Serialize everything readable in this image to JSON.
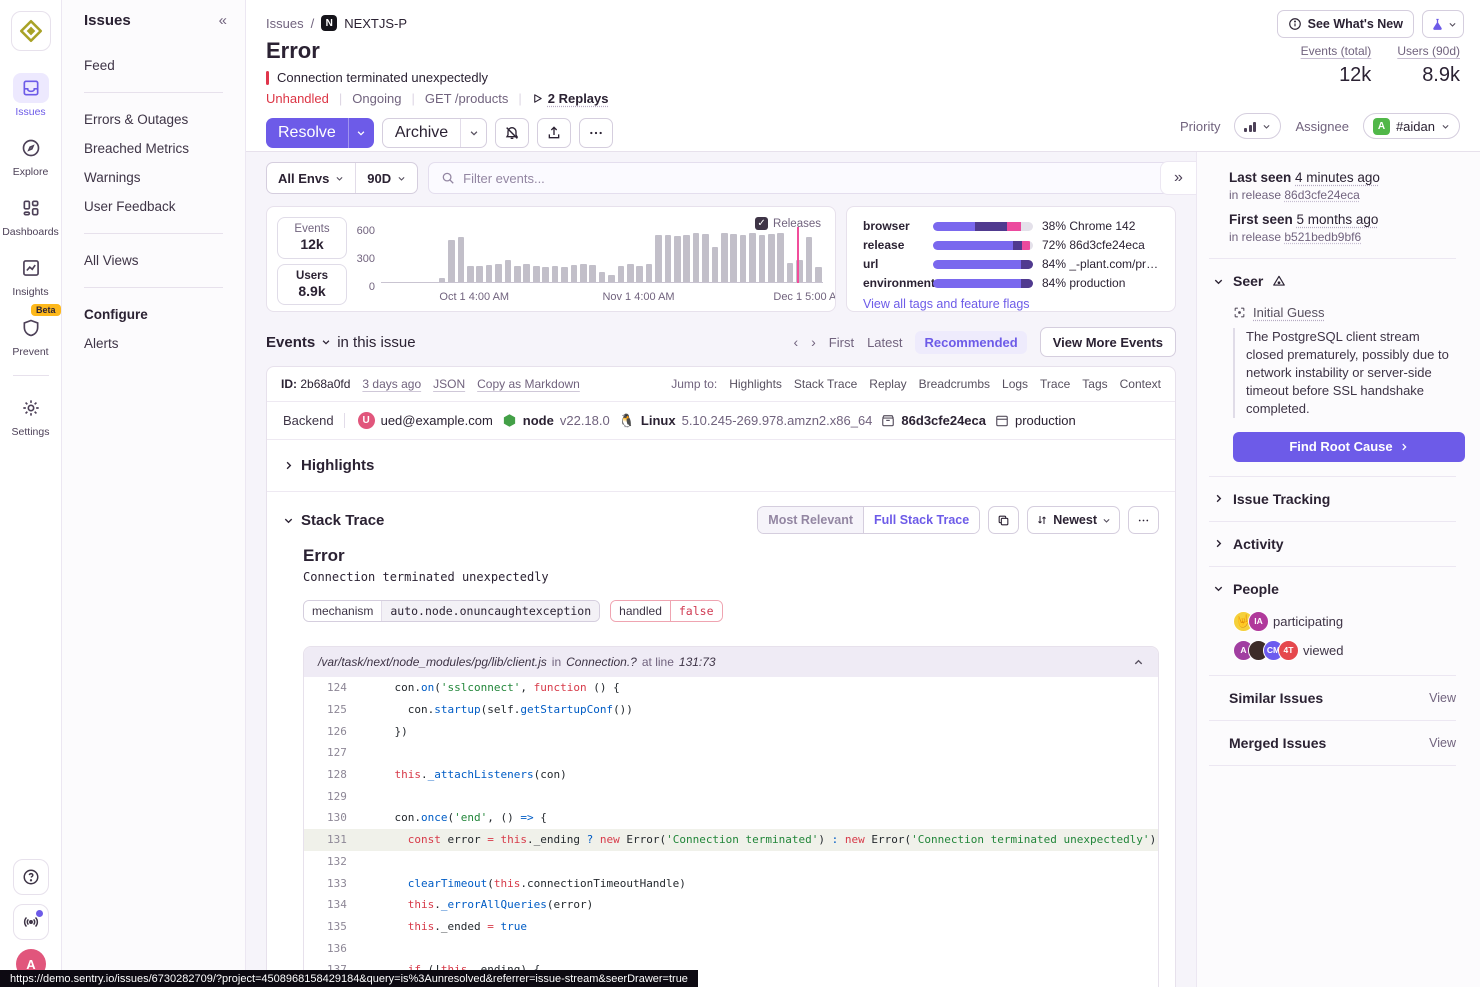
{
  "rail": {
    "items": [
      {
        "label": "Issues"
      },
      {
        "label": "Explore"
      },
      {
        "label": "Dashboards"
      },
      {
        "label": "Insights"
      },
      {
        "label": "Prevent",
        "badge": "Beta"
      },
      {
        "label": "Settings"
      }
    ],
    "avatar_letter": "A"
  },
  "sidebar": {
    "title": "Issues",
    "items": [
      "Feed",
      "Errors & Outages",
      "Breached Metrics",
      "Warnings",
      "User Feedback",
      "All Views",
      "Alerts"
    ],
    "configure_label": "Configure"
  },
  "header": {
    "breadcrumb_root": "Issues",
    "project_letter": "N",
    "project": "NEXTJS-P",
    "whats_new": "See What's New",
    "title": "Error",
    "message": "Connection terminated unexpectedly",
    "unhandled": "Unhandled",
    "status": "Ongoing",
    "transaction": "GET /products",
    "replays": "2 Replays",
    "stats": [
      {
        "label": "Events (total)",
        "value": "12k"
      },
      {
        "label": "Users (90d)",
        "value": "8.9k"
      }
    ],
    "resolve": "Resolve",
    "archive": "Archive",
    "priority_label": "Priority",
    "assignee_label": "Assignee",
    "assignee": "#aidan",
    "assignee_initial": "A"
  },
  "filters": {
    "env": "All Envs",
    "range": "90D",
    "search_placeholder": "Filter events..."
  },
  "chart_summary": {
    "events_label": "Events",
    "events_value": "12k",
    "users_label": "Users",
    "users_value": "8.9k",
    "releases_label": "Releases"
  },
  "chart_data": {
    "type": "bar",
    "ylabel": "events",
    "ylim": [
      0,
      600
    ],
    "yticks": [
      "600",
      "300",
      "0"
    ],
    "xticks": [
      {
        "label": "Oct 1 4:00 AM",
        "pos": 0.21
      },
      {
        "label": "Nov 1 4:00 AM",
        "pos": 0.58
      },
      {
        "label": "Dec 1 5:00 AM",
        "pos": 0.965
      }
    ],
    "values": [
      0,
      0,
      0,
      0,
      0,
      0,
      45,
      450,
      485,
      175,
      170,
      180,
      190,
      240,
      175,
      190,
      170,
      165,
      170,
      165,
      185,
      190,
      185,
      110,
      80,
      170,
      190,
      175,
      190,
      500,
      500,
      495,
      505,
      520,
      515,
      370,
      520,
      510,
      500,
      530,
      500,
      510,
      520,
      200,
      240,
      480,
      160
    ],
    "release_line_index": 44,
    "bar_color": "#c2bfc9",
    "release_line_color": "#f14d9b",
    "legend": "Releases checkbox checked"
  },
  "tags_panel": {
    "rows": [
      {
        "label": "browser",
        "pct": "38%",
        "value": "Chrome 142",
        "segments": [
          [
            42,
            "#7a68ee"
          ],
          [
            32,
            "#503a8f"
          ],
          [
            14,
            "#ec4a9e"
          ],
          [
            12,
            "#e4e1ea"
          ]
        ]
      },
      {
        "label": "release",
        "pct": "72%",
        "value": "86d3cfe24eca",
        "segments": [
          [
            80,
            "#7a68ee"
          ],
          [
            9,
            "#503a8f"
          ],
          [
            8,
            "#ec4a9e"
          ],
          [
            3,
            "#e4e1ea"
          ]
        ]
      },
      {
        "label": "url",
        "pct": "84%",
        "value": "_-plant.com/products",
        "segments": [
          [
            88,
            "#7a68ee"
          ],
          [
            12,
            "#503a8f"
          ]
        ]
      },
      {
        "label": "environment",
        "pct": "84%",
        "value": "production",
        "segments": [
          [
            88,
            "#7a68ee"
          ],
          [
            12,
            "#503a8f"
          ]
        ]
      }
    ],
    "link": "View all tags and feature flags"
  },
  "events_section": {
    "title": "Events",
    "subtitle": "in this issue",
    "first": "First",
    "latest": "Latest",
    "recommended": "Recommended",
    "view_more": "View More Events"
  },
  "event": {
    "id_label": "ID:",
    "id": "2b68a0fd",
    "age": "3 days ago",
    "json": "JSON",
    "copy_md": "Copy as Markdown",
    "jump_label": "Jump to:",
    "jump_links": [
      "Highlights",
      "Stack Trace",
      "Replay",
      "Breadcrumbs",
      "Logs",
      "Trace",
      "Tags",
      "Context"
    ],
    "env_type": "Backend",
    "user": "ued@example.com",
    "runtime": "node",
    "runtime_ver": "v22.18.0",
    "os": "Linux",
    "os_ver": "5.10.245-269.978.amzn2.x86_64",
    "release": "86d3cfe24eca",
    "environment": "production"
  },
  "highlights_title": "Highlights",
  "stack": {
    "title": "Stack Trace",
    "most_relevant": "Most Relevant",
    "full_stack": "Full Stack Trace",
    "sort": "Newest",
    "error_type": "Error",
    "error_value": "Connection terminated unexpectedly",
    "mechanism_label": "mechanism",
    "mechanism": "auto.node.onuncaughtexception",
    "handled_label": "handled",
    "handled": "false",
    "frame_path": "/var/task/next/node_modules/pg/lib/client.js",
    "frame_in": "in",
    "frame_fn": "Connection.?",
    "frame_at": "at line",
    "frame_line": "131:73",
    "highlight_line": 131,
    "code_lines": [
      {
        "n": 124,
        "t": [
          [
            "p",
            "    con."
          ],
          [
            "f",
            "on"
          ],
          [
            "p",
            "("
          ],
          [
            "s",
            "'sslconnect'"
          ],
          [
            "p",
            ", "
          ],
          [
            "k",
            "function"
          ],
          [
            "p",
            " () {"
          ]
        ]
      },
      {
        "n": 125,
        "t": [
          [
            "p",
            "      con."
          ],
          [
            "f",
            "startup"
          ],
          [
            "p",
            "(self."
          ],
          [
            "f",
            "getStartupConf"
          ],
          [
            "p",
            "())"
          ]
        ]
      },
      {
        "n": 126,
        "t": [
          [
            "p",
            "    })"
          ]
        ]
      },
      {
        "n": 127,
        "t": []
      },
      {
        "n": 128,
        "t": [
          [
            "p",
            "    "
          ],
          [
            "k",
            "this"
          ],
          [
            "p",
            "."
          ],
          [
            "f",
            "_attachListeners"
          ],
          [
            "p",
            "(con)"
          ]
        ]
      },
      {
        "n": 129,
        "t": []
      },
      {
        "n": 130,
        "t": [
          [
            "p",
            "    con."
          ],
          [
            "f",
            "once"
          ],
          [
            "p",
            "("
          ],
          [
            "s",
            "'end'"
          ],
          [
            "p",
            ", () "
          ],
          [
            "f",
            "=>"
          ],
          [
            "p",
            " {"
          ]
        ]
      },
      {
        "n": 131,
        "t": [
          [
            "p",
            "      "
          ],
          [
            "k",
            "const"
          ],
          [
            "p",
            " error "
          ],
          [
            "k",
            "="
          ],
          [
            "p",
            " "
          ],
          [
            "k",
            "this"
          ],
          [
            "p",
            "._ending "
          ],
          [
            "f",
            "?"
          ],
          [
            "p",
            " "
          ],
          [
            "k",
            "new"
          ],
          [
            "p",
            " Error("
          ],
          [
            "s",
            "'Connection terminated'"
          ],
          [
            "p",
            ") "
          ],
          [
            "f",
            ":"
          ],
          [
            "p",
            " "
          ],
          [
            "k",
            "new"
          ],
          [
            "p",
            " Error("
          ],
          [
            "s",
            "'Connection terminated unexpectedly'"
          ],
          [
            "p",
            ")"
          ]
        ]
      },
      {
        "n": 132,
        "t": []
      },
      {
        "n": 133,
        "t": [
          [
            "p",
            "      "
          ],
          [
            "f",
            "clearTimeout"
          ],
          [
            "p",
            "("
          ],
          [
            "k",
            "this"
          ],
          [
            "p",
            ".connectionTimeoutHandle)"
          ]
        ]
      },
      {
        "n": 134,
        "t": [
          [
            "p",
            "      "
          ],
          [
            "k",
            "this"
          ],
          [
            "p",
            "."
          ],
          [
            "f",
            "_errorAllQueries"
          ],
          [
            "p",
            "(error)"
          ]
        ]
      },
      {
        "n": 135,
        "t": [
          [
            "p",
            "      "
          ],
          [
            "k",
            "this"
          ],
          [
            "p",
            "._ended "
          ],
          [
            "k",
            "="
          ],
          [
            "p",
            " "
          ],
          [
            "f",
            "true"
          ]
        ]
      },
      {
        "n": 136,
        "t": []
      },
      {
        "n": 137,
        "t": [
          [
            "p",
            "      "
          ],
          [
            "k",
            "if"
          ],
          [
            "p",
            " (!"
          ],
          [
            "k",
            "this"
          ],
          [
            "p",
            "._ending) {"
          ]
        ]
      }
    ]
  },
  "rightbar": {
    "last_seen_label": "Last seen",
    "last_seen": "4 minutes ago",
    "in_release": "in release",
    "last_release": "86d3cfe24eca",
    "first_seen_label": "First seen",
    "first_seen": "5 months ago",
    "first_release": "b521bedb9bf6",
    "seer_title": "Seer",
    "guess_label": "Initial Guess",
    "guess_text": "The PostgreSQL client stream closed prematurely, possibly due to network instability or server-side timeout before SSL handshake completed.",
    "root_cta": "Find Root Cause",
    "issue_tracking": "Issue Tracking",
    "activity": "Activity",
    "people": "People",
    "participating": "participating",
    "viewed": "viewed",
    "participants": [
      {
        "emoji": "🤟",
        "bg": "#f5d03b",
        "text": ""
      },
      {
        "bg": "#b0399b",
        "text": "IA"
      }
    ],
    "viewers": [
      {
        "bg": "#a13ea1",
        "text": "A"
      },
      {
        "bg": "#3d2c28",
        "text": ""
      },
      {
        "bg": "#6c5bef",
        "text": "CM"
      },
      {
        "bg": "#e5484d",
        "text": "4T"
      }
    ],
    "similar": "Similar Issues",
    "merged": "Merged Issues",
    "view": "View"
  },
  "statusbar": {
    "url": "https://demo.sentry.io/issues/6730282709/?project=4508968158429184&query=is%3Aunresolved&referrer=issue-stream&seerDrawer=true"
  }
}
